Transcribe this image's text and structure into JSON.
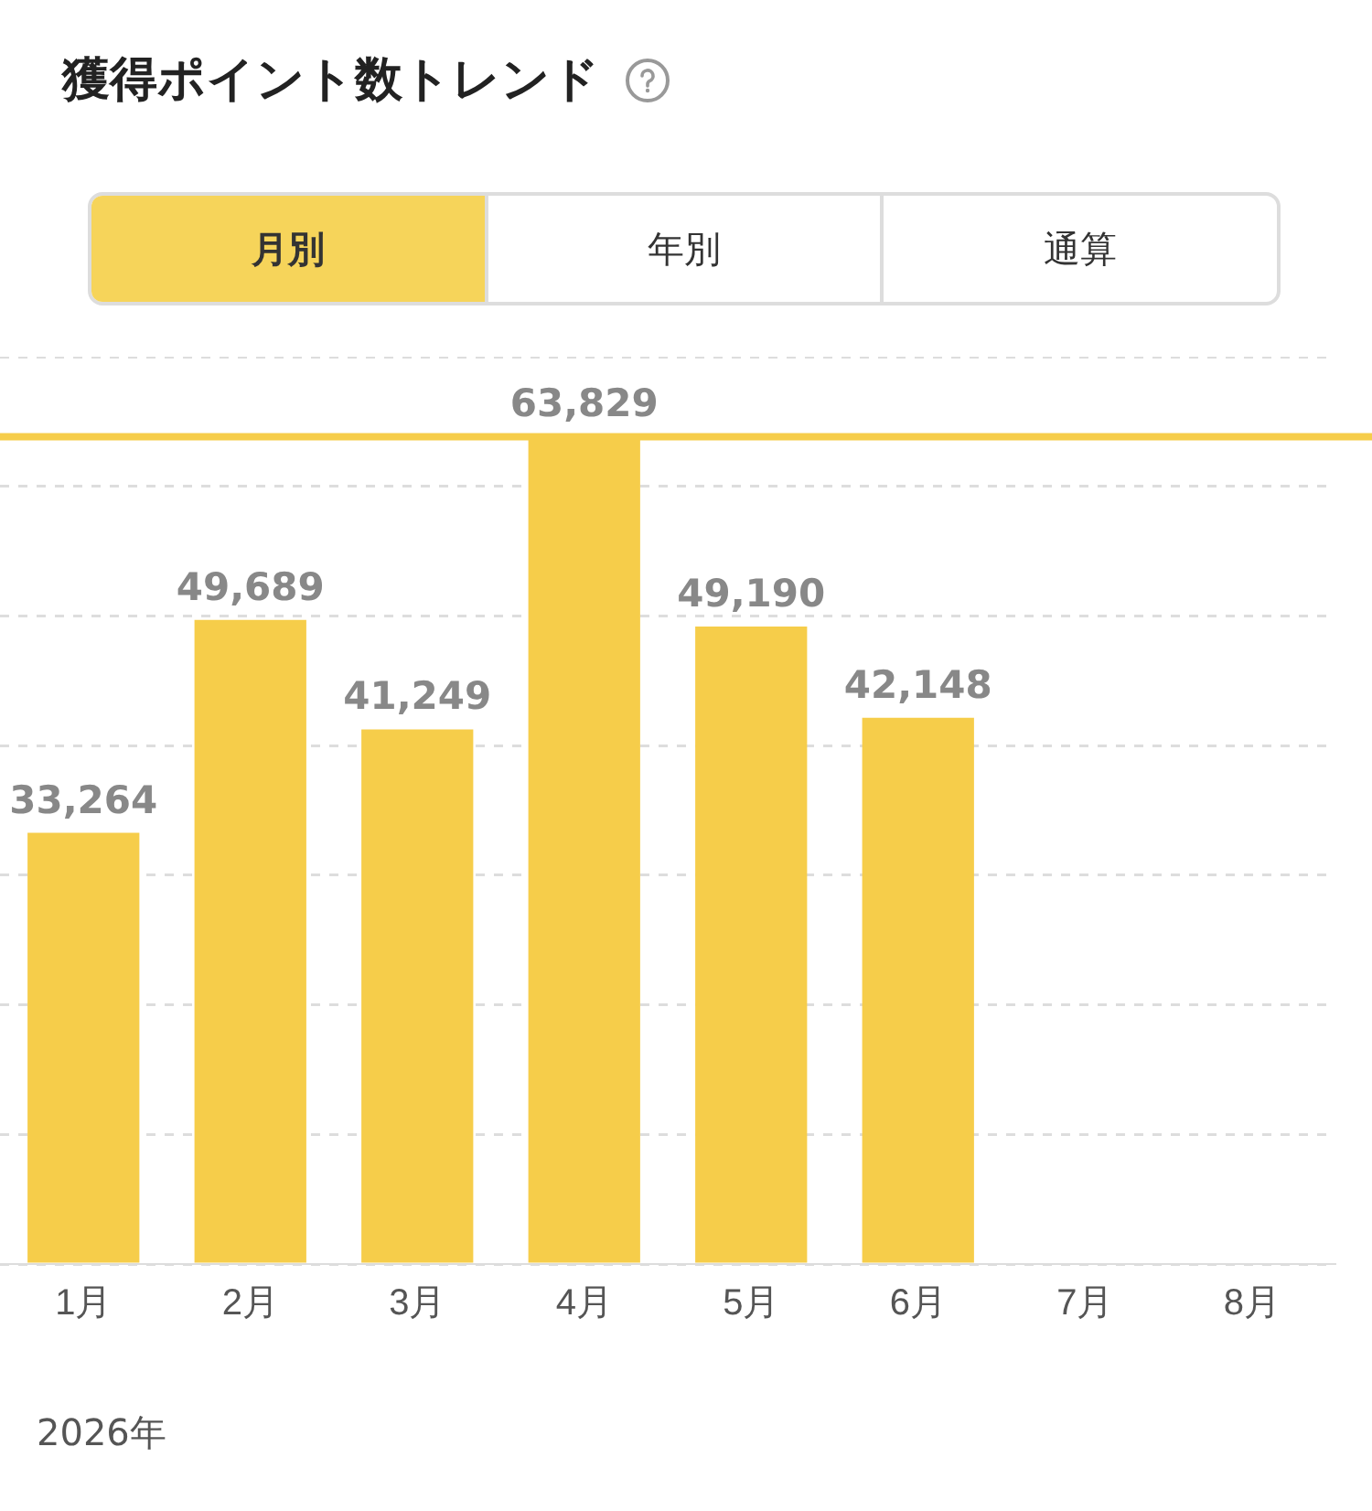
{
  "chart_data": {
    "type": "bar",
    "title": "獲得ポイント数トレンド",
    "categories": [
      "1月",
      "2月",
      "3月",
      "4月",
      "5月",
      "6月",
      "7月",
      "8月"
    ],
    "values": [
      33264,
      49689,
      41249,
      63829,
      49190,
      42148,
      null,
      null
    ],
    "color": "#f6cd4a",
    "value_labels": [
      "33,264",
      "49,689",
      "41,249",
      "63,829",
      "49,190",
      "42,148",
      null,
      null
    ],
    "tick_labels": "x",
    "grid": "y",
    "legend": false,
    "ref_lines": [
      {
        "axis": "y",
        "value": 63829,
        "color": "#f6cd4a"
      }
    ],
    "annotations": [
      "月別",
      "年別",
      "通算",
      "2026年"
    ]
  }
}
